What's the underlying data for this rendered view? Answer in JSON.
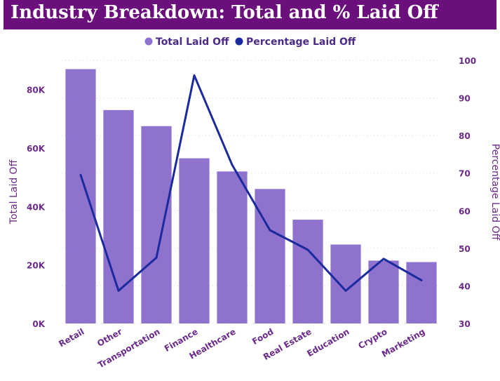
{
  "chart_data": {
    "type": "bar+line",
    "title": "Industry Breakdown: Total and % Laid Off",
    "categories": [
      "Retail",
      "Other",
      "Transportation",
      "Finance",
      "Healthcare",
      "Food",
      "Real Estate",
      "Education",
      "Crypto",
      "Marketing"
    ],
    "series": [
      {
        "name": "Total Laid Off",
        "type": "bar",
        "axis": "left",
        "color": "#8e72ce",
        "values": [
          87000,
          73000,
          67500,
          56500,
          52000,
          46000,
          35500,
          27000,
          21500,
          21000
        ]
      },
      {
        "name": "Percentage Laid Off",
        "type": "line",
        "axis": "right",
        "color": "#1b2a9c",
        "values": [
          69.5,
          38.7,
          47.5,
          96.0,
          72.2,
          54.8,
          49.6,
          38.7,
          47.2,
          41.5
        ]
      }
    ],
    "ylabel": "Total Laid Off",
    "y2label": "Percentage Laid Off",
    "ylim": [
      0,
      90000
    ],
    "y2lim": [
      30,
      100
    ],
    "yticks": [
      0,
      20000,
      40000,
      60000,
      80000
    ],
    "ytick_labels": [
      "0K",
      "20K",
      "40K",
      "60K",
      "80K"
    ],
    "y2ticks": [
      30,
      40,
      50,
      60,
      70,
      80,
      90,
      100
    ],
    "y2tick_labels": [
      "30",
      "40",
      "50",
      "60",
      "70",
      "80",
      "90",
      "100"
    ],
    "legend_position": "top-center",
    "grid": true,
    "colors": {
      "title_bg": "#6a0f7c",
      "title_text": "#ffffff",
      "axis_text": "#6a2a8a",
      "legend_text": "#4b2a8a",
      "gridline": "#d9d9d9"
    }
  }
}
